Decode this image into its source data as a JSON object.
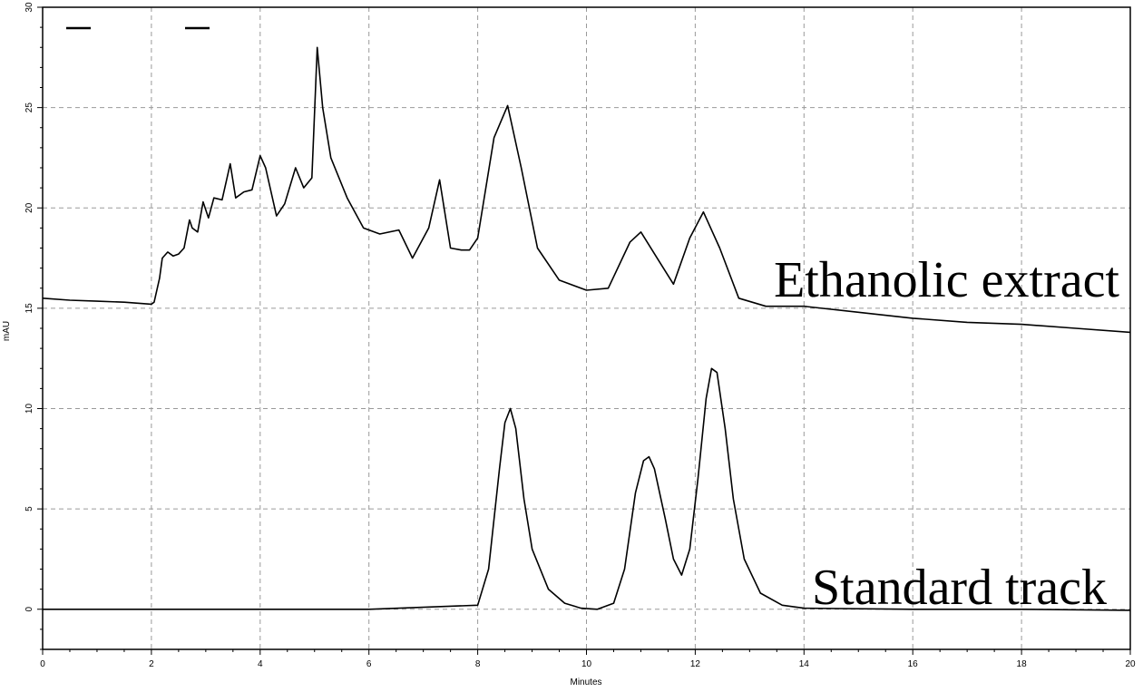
{
  "chart_data": {
    "type": "line",
    "title": "",
    "xlabel": "Minutes",
    "ylabel": "mAU",
    "xlim": [
      0,
      20
    ],
    "ylim": [
      -2,
      30
    ],
    "x_ticks": [
      0,
      2,
      4,
      6,
      8,
      10,
      12,
      14,
      16,
      18,
      20
    ],
    "y_ticks": [
      0,
      5,
      10,
      15,
      20,
      25,
      30
    ],
    "grid": true,
    "annotations": [
      "Ethanolic extract",
      "Standard track"
    ],
    "series": [
      {
        "x": [
          0,
          0.5,
          1.0,
          1.5,
          2.0,
          2.05,
          2.15,
          2.2,
          2.3,
          2.4,
          2.5,
          2.6,
          2.7,
          2.75,
          2.85,
          2.95,
          3.05,
          3.15,
          3.3,
          3.45,
          3.55,
          3.7,
          3.85,
          4.0,
          4.1,
          4.3,
          4.45,
          4.65,
          4.8,
          4.95,
          5.05,
          5.15,
          5.3,
          5.6,
          5.9,
          6.2,
          6.55,
          6.8,
          7.1,
          7.3,
          7.5,
          7.7,
          7.85,
          8.0,
          8.3,
          8.55,
          8.8,
          9.1,
          9.5,
          10.0,
          10.4,
          10.8,
          11.0,
          11.3,
          11.6,
          11.9,
          12.15,
          12.45,
          12.8,
          13.3,
          14.0,
          15.0,
          16.0,
          17.0,
          18.0,
          19.0,
          20.0
        ],
        "y": [
          15.5,
          15.4,
          15.35,
          15.3,
          15.2,
          15.3,
          16.5,
          17.5,
          17.8,
          17.6,
          17.7,
          18.0,
          19.4,
          19.0,
          18.8,
          20.3,
          19.5,
          20.5,
          20.4,
          22.2,
          20.5,
          20.8,
          20.9,
          22.6,
          22.0,
          19.6,
          20.2,
          22.0,
          21.0,
          21.5,
          28.0,
          25.0,
          22.5,
          20.5,
          19.0,
          18.7,
          18.9,
          17.5,
          19.0,
          21.4,
          18.0,
          17.9,
          17.9,
          18.5,
          23.5,
          25.1,
          22.0,
          18.0,
          16.4,
          15.9,
          16.0,
          18.3,
          18.8,
          17.5,
          16.2,
          18.5,
          19.8,
          18.0,
          15.5,
          15.1,
          15.1,
          14.8,
          14.5,
          14.3,
          14.2,
          14.0,
          13.8
        ]
      },
      {
        "x": [
          0,
          2,
          4,
          6,
          8.0,
          8.2,
          8.4,
          8.5,
          8.6,
          8.7,
          8.85,
          9.0,
          9.3,
          9.6,
          9.9,
          10.2,
          10.5,
          10.7,
          10.9,
          11.05,
          11.15,
          11.25,
          11.45,
          11.6,
          11.75,
          11.9,
          12.05,
          12.2,
          12.3,
          12.4,
          12.55,
          12.7,
          12.9,
          13.2,
          13.6,
          14.0,
          16.0,
          18.0,
          20.0
        ],
        "y": [
          0,
          0,
          0,
          0,
          0.2,
          2.0,
          7.0,
          9.3,
          10.0,
          9.0,
          5.5,
          3.0,
          1.0,
          0.3,
          0.05,
          0,
          0.3,
          2.0,
          5.8,
          7.4,
          7.6,
          7.0,
          4.5,
          2.5,
          1.7,
          3.0,
          6.5,
          10.5,
          12.0,
          11.8,
          9.0,
          5.5,
          2.5,
          0.8,
          0.2,
          0.05,
          0,
          0,
          -0.05
        ]
      }
    ]
  }
}
